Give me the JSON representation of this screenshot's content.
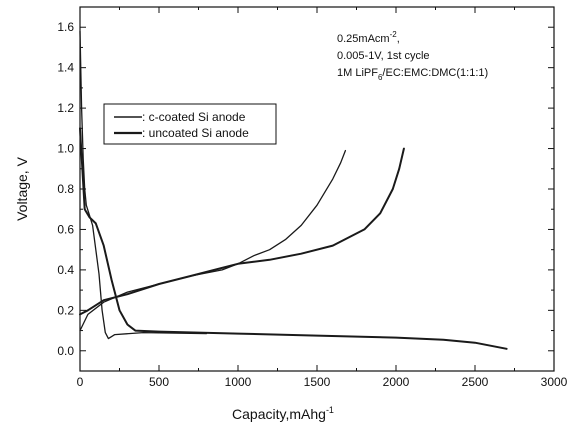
{
  "chart_data": {
    "type": "line",
    "xlabel": "Capacity,mAhg",
    "xlabel_sup": "-1",
    "ylabel": "Voltage, V",
    "xlim": [
      0,
      3000
    ],
    "ylim": [
      -0.1,
      1.7
    ],
    "xticks": [
      0,
      500,
      1000,
      1500,
      2000,
      2500,
      3000
    ],
    "yticks": [
      0.0,
      0.2,
      0.4,
      0.6,
      0.8,
      1.0,
      1.2,
      1.4,
      1.6
    ],
    "grid": false,
    "legend_position": "upper-left",
    "annotations": {
      "line1_main": "0.25mAcm",
      "line1_sup": "-2",
      "line1_end": ",",
      "line2": "0.005-1V, 1st cycle",
      "line3_a": "1M LiPF",
      "line3_sub": "6",
      "line3_b": "/EC:EMC:DMC(1:1:1)"
    },
    "series": [
      {
        "name": ": c-coated Si anode",
        "color": "#1a1a1a",
        "discharge": [
          [
            0,
            1.58
          ],
          [
            10,
            1.2
          ],
          [
            20,
            0.95
          ],
          [
            30,
            0.8
          ],
          [
            40,
            0.72
          ],
          [
            60,
            0.67
          ],
          [
            80,
            0.62
          ],
          [
            100,
            0.5
          ],
          [
            120,
            0.38
          ],
          [
            140,
            0.2
          ],
          [
            160,
            0.09
          ],
          [
            180,
            0.06
          ],
          [
            220,
            0.08
          ],
          [
            400,
            0.09
          ],
          [
            800,
            0.085
          ]
        ],
        "charge": [
          [
            0,
            0.1
          ],
          [
            50,
            0.18
          ],
          [
            150,
            0.24
          ],
          [
            300,
            0.29
          ],
          [
            500,
            0.33
          ],
          [
            700,
            0.37
          ],
          [
            900,
            0.4
          ],
          [
            1000,
            0.43
          ],
          [
            1100,
            0.47
          ],
          [
            1200,
            0.5
          ],
          [
            1300,
            0.55
          ],
          [
            1400,
            0.62
          ],
          [
            1500,
            0.72
          ],
          [
            1600,
            0.85
          ],
          [
            1650,
            0.93
          ],
          [
            1680,
            0.99
          ]
        ]
      },
      {
        "name": ": uncoated Si anode",
        "color": "#1a1a1a",
        "discharge": [
          [
            0,
            1.1
          ],
          [
            30,
            0.7
          ],
          [
            60,
            0.66
          ],
          [
            100,
            0.63
          ],
          [
            150,
            0.52
          ],
          [
            200,
            0.35
          ],
          [
            250,
            0.2
          ],
          [
            300,
            0.13
          ],
          [
            350,
            0.1
          ],
          [
            500,
            0.095
          ],
          [
            1000,
            0.085
          ],
          [
            1500,
            0.075
          ],
          [
            2000,
            0.065
          ],
          [
            2300,
            0.055
          ],
          [
            2500,
            0.04
          ],
          [
            2700,
            0.01
          ]
        ],
        "charge": [
          [
            0,
            0.18
          ],
          [
            50,
            0.2
          ],
          [
            150,
            0.25
          ],
          [
            300,
            0.28
          ],
          [
            500,
            0.33
          ],
          [
            700,
            0.37
          ],
          [
            900,
            0.41
          ],
          [
            1000,
            0.43
          ],
          [
            1100,
            0.44
          ],
          [
            1200,
            0.45
          ],
          [
            1400,
            0.48
          ],
          [
            1600,
            0.52
          ],
          [
            1800,
            0.6
          ],
          [
            1900,
            0.68
          ],
          [
            1980,
            0.8
          ],
          [
            2020,
            0.9
          ],
          [
            2050,
            1.0
          ]
        ]
      }
    ]
  }
}
